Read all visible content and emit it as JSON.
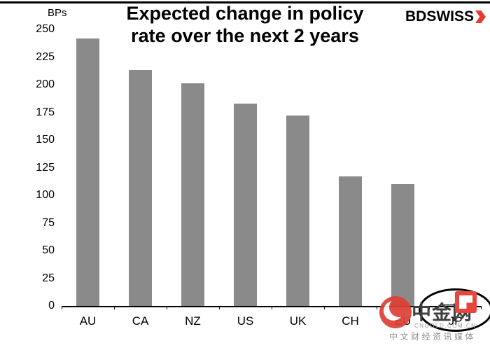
{
  "header": {
    "title_line1": "Expected change in policy",
    "title_line2": "rate over the next 2 years",
    "logo": {
      "text_bd": "BD",
      "text_swiss": "SWISS"
    }
  },
  "chart_data": {
    "type": "bar",
    "title": "Expected change in policy rate over the next 2 years",
    "ylabel": "BPs",
    "xlabel": "",
    "categories": [
      "AU",
      "CA",
      "NZ",
      "US",
      "UK",
      "CH",
      "EU",
      "JP"
    ],
    "values": [
      242,
      213,
      201,
      183,
      172,
      117,
      110,
      2
    ],
    "ylim": [
      0,
      250
    ],
    "yticks": [
      0,
      25,
      50,
      75,
      100,
      125,
      150,
      175,
      200,
      225,
      250
    ],
    "grid": false,
    "legend": false,
    "bar_color": "#8a8a8a",
    "annotations": [
      {
        "type": "ellipse",
        "target": "JP",
        "note": "JP near-zero value circled"
      }
    ]
  },
  "watermark": {
    "brand": "中金网",
    "domain": "CNGOLD.COM.CN",
    "tagline": "中文财经资讯媒体"
  },
  "icons": {
    "bdswiss_arrow": "red-flash-arrow",
    "cngold_circle": "red-swirl-circle",
    "cngold_seal": "red-square-seal"
  },
  "colors": {
    "accent_red": "#e73b2e",
    "bar": "#8a8a8a",
    "axis": "#000000",
    "watermark_text": "#3f3f3f"
  }
}
